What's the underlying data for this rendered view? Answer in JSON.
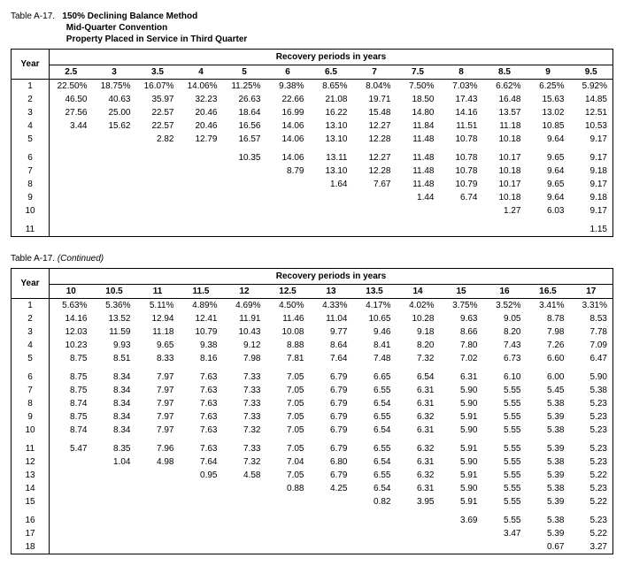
{
  "table1": {
    "prefix": "Table A-17.",
    "title_lines": [
      "150% Declining Balance Method",
      "Mid-Quarter Convention",
      "Property Placed in Service in Third Quarter"
    ],
    "year_label": "Year",
    "super_header": "Recovery periods in years",
    "columns": [
      "2.5",
      "3",
      "3.5",
      "4",
      "5",
      "6",
      "6.5",
      "7",
      "7.5",
      "8",
      "8.5",
      "9",
      "9.5"
    ],
    "groups": [
      {
        "rows": [
          {
            "year": "1",
            "cells": [
              "22.50%",
              "18.75%",
              "16.07%",
              "14.06%",
              "11.25%",
              "9.38%",
              "8.65%",
              "8.04%",
              "7.50%",
              "7.03%",
              "6.62%",
              "6.25%",
              "5.92%"
            ]
          },
          {
            "year": "2",
            "cells": [
              "46.50",
              "40.63",
              "35.97",
              "32.23",
              "26.63",
              "22.66",
              "21.08",
              "19.71",
              "18.50",
              "17.43",
              "16.48",
              "15.63",
              "14.85"
            ]
          },
          {
            "year": "3",
            "cells": [
              "27.56",
              "25.00",
              "22.57",
              "20.46",
              "18.64",
              "16.99",
              "16.22",
              "15.48",
              "14.80",
              "14.16",
              "13.57",
              "13.02",
              "12.51"
            ]
          },
          {
            "year": "4",
            "cells": [
              "3.44",
              "15.62",
              "22.57",
              "20.46",
              "16.56",
              "14.06",
              "13.10",
              "12.27",
              "11.84",
              "11.51",
              "11.18",
              "10.85",
              "10.53"
            ]
          },
          {
            "year": "5",
            "cells": [
              "",
              "",
              "2.82",
              "12.79",
              "16.57",
              "14.06",
              "13.10",
              "12.28",
              "11.48",
              "10.78",
              "10.18",
              "9.64",
              "9.17"
            ]
          }
        ]
      },
      {
        "rows": [
          {
            "year": "6",
            "cells": [
              "",
              "",
              "",
              "",
              "10.35",
              "14.06",
              "13.11",
              "12.27",
              "11.48",
              "10.78",
              "10.17",
              "9.65",
              "9.17"
            ]
          },
          {
            "year": "7",
            "cells": [
              "",
              "",
              "",
              "",
              "",
              "8.79",
              "13.10",
              "12.28",
              "11.48",
              "10.78",
              "10.18",
              "9.64",
              "9.18"
            ]
          },
          {
            "year": "8",
            "cells": [
              "",
              "",
              "",
              "",
              "",
              "",
              "1.64",
              "7.67",
              "11.48",
              "10.79",
              "10.17",
              "9.65",
              "9.17"
            ]
          },
          {
            "year": "9",
            "cells": [
              "",
              "",
              "",
              "",
              "",
              "",
              "",
              "",
              "1.44",
              "6.74",
              "10.18",
              "9.64",
              "9.18"
            ]
          },
          {
            "year": "10",
            "cells": [
              "",
              "",
              "",
              "",
              "",
              "",
              "",
              "",
              "",
              "",
              "1.27",
              "6.03",
              "9.17"
            ]
          }
        ]
      },
      {
        "rows": [
          {
            "year": "11",
            "cells": [
              "",
              "",
              "",
              "",
              "",
              "",
              "",
              "",
              "",
              "",
              "",
              "",
              "1.15"
            ]
          }
        ]
      }
    ]
  },
  "table2": {
    "prefix": "Table A-17.",
    "continued": "(Continued)",
    "year_label": "Year",
    "super_header": "Recovery periods in years",
    "columns": [
      "10",
      "10.5",
      "11",
      "11.5",
      "12",
      "12.5",
      "13",
      "13.5",
      "14",
      "15",
      "16",
      "16.5",
      "17"
    ],
    "groups": [
      {
        "rows": [
          {
            "year": "1",
            "cells": [
              "5.63%",
              "5.36%",
              "5.11%",
              "4.89%",
              "4.69%",
              "4.50%",
              "4.33%",
              "4.17%",
              "4.02%",
              "3.75%",
              "3.52%",
              "3.41%",
              "3.31%"
            ]
          },
          {
            "year": "2",
            "cells": [
              "14.16",
              "13.52",
              "12.94",
              "12.41",
              "11.91",
              "11.46",
              "11.04",
              "10.65",
              "10.28",
              "9.63",
              "9.05",
              "8.78",
              "8.53"
            ]
          },
          {
            "year": "3",
            "cells": [
              "12.03",
              "11.59",
              "11.18",
              "10.79",
              "10.43",
              "10.08",
              "9.77",
              "9.46",
              "9.18",
              "8.66",
              "8.20",
              "7.98",
              "7.78"
            ]
          },
          {
            "year": "4",
            "cells": [
              "10.23",
              "9.93",
              "9.65",
              "9.38",
              "9.12",
              "8.88",
              "8.64",
              "8.41",
              "8.20",
              "7.80",
              "7.43",
              "7.26",
              "7.09"
            ]
          },
          {
            "year": "5",
            "cells": [
              "8.75",
              "8.51",
              "8.33",
              "8.16",
              "7.98",
              "7.81",
              "7.64",
              "7.48",
              "7.32",
              "7.02",
              "6.73",
              "6.60",
              "6.47"
            ]
          }
        ]
      },
      {
        "rows": [
          {
            "year": "6",
            "cells": [
              "8.75",
              "8.34",
              "7.97",
              "7.63",
              "7.33",
              "7.05",
              "6.79",
              "6.65",
              "6.54",
              "6.31",
              "6.10",
              "6.00",
              "5.90"
            ]
          },
          {
            "year": "7",
            "cells": [
              "8.75",
              "8.34",
              "7.97",
              "7.63",
              "7.33",
              "7.05",
              "6.79",
              "6.55",
              "6.31",
              "5.90",
              "5.55",
              "5.45",
              "5.38"
            ]
          },
          {
            "year": "8",
            "cells": [
              "8.74",
              "8.34",
              "7.97",
              "7.63",
              "7.33",
              "7.05",
              "6.79",
              "6.54",
              "6.31",
              "5.90",
              "5.55",
              "5.38",
              "5.23"
            ]
          },
          {
            "year": "9",
            "cells": [
              "8.75",
              "8.34",
              "7.97",
              "7.63",
              "7.33",
              "7.05",
              "6.79",
              "6.55",
              "6.32",
              "5.91",
              "5.55",
              "5.39",
              "5.23"
            ]
          },
          {
            "year": "10",
            "cells": [
              "8.74",
              "8.34",
              "7.97",
              "7.63",
              "7.32",
              "7.05",
              "6.79",
              "6.54",
              "6.31",
              "5.90",
              "5.55",
              "5.38",
              "5.23"
            ]
          }
        ]
      },
      {
        "rows": [
          {
            "year": "11",
            "cells": [
              "5.47",
              "8.35",
              "7.96",
              "7.63",
              "7.33",
              "7.05",
              "6.79",
              "6.55",
              "6.32",
              "5.91",
              "5.55",
              "5.39",
              "5.23"
            ]
          },
          {
            "year": "12",
            "cells": [
              "",
              "1.04",
              "4.98",
              "7.64",
              "7.32",
              "7.04",
              "6.80",
              "6.54",
              "6.31",
              "5.90",
              "5.55",
              "5.38",
              "5.23"
            ]
          },
          {
            "year": "13",
            "cells": [
              "",
              "",
              "",
              "0.95",
              "4.58",
              "7.05",
              "6.79",
              "6.55",
              "6.32",
              "5.91",
              "5.55",
              "5.39",
              "5.22"
            ]
          },
          {
            "year": "14",
            "cells": [
              "",
              "",
              "",
              "",
              "",
              "0.88",
              "4.25",
              "6.54",
              "6.31",
              "5.90",
              "5.55",
              "5.38",
              "5.23"
            ]
          },
          {
            "year": "15",
            "cells": [
              "",
              "",
              "",
              "",
              "",
              "",
              "",
              "0.82",
              "3.95",
              "5.91",
              "5.55",
              "5.39",
              "5.22"
            ]
          }
        ]
      },
      {
        "rows": [
          {
            "year": "16",
            "cells": [
              "",
              "",
              "",
              "",
              "",
              "",
              "",
              "",
              "",
              "3.69",
              "5.55",
              "5.38",
              "5.23"
            ]
          },
          {
            "year": "17",
            "cells": [
              "",
              "",
              "",
              "",
              "",
              "",
              "",
              "",
              "",
              "",
              "3.47",
              "5.39",
              "5.22"
            ]
          },
          {
            "year": "18",
            "cells": [
              "",
              "",
              "",
              "",
              "",
              "",
              "",
              "",
              "",
              "",
              "",
              "0.67",
              "3.27"
            ]
          }
        ]
      }
    ]
  }
}
